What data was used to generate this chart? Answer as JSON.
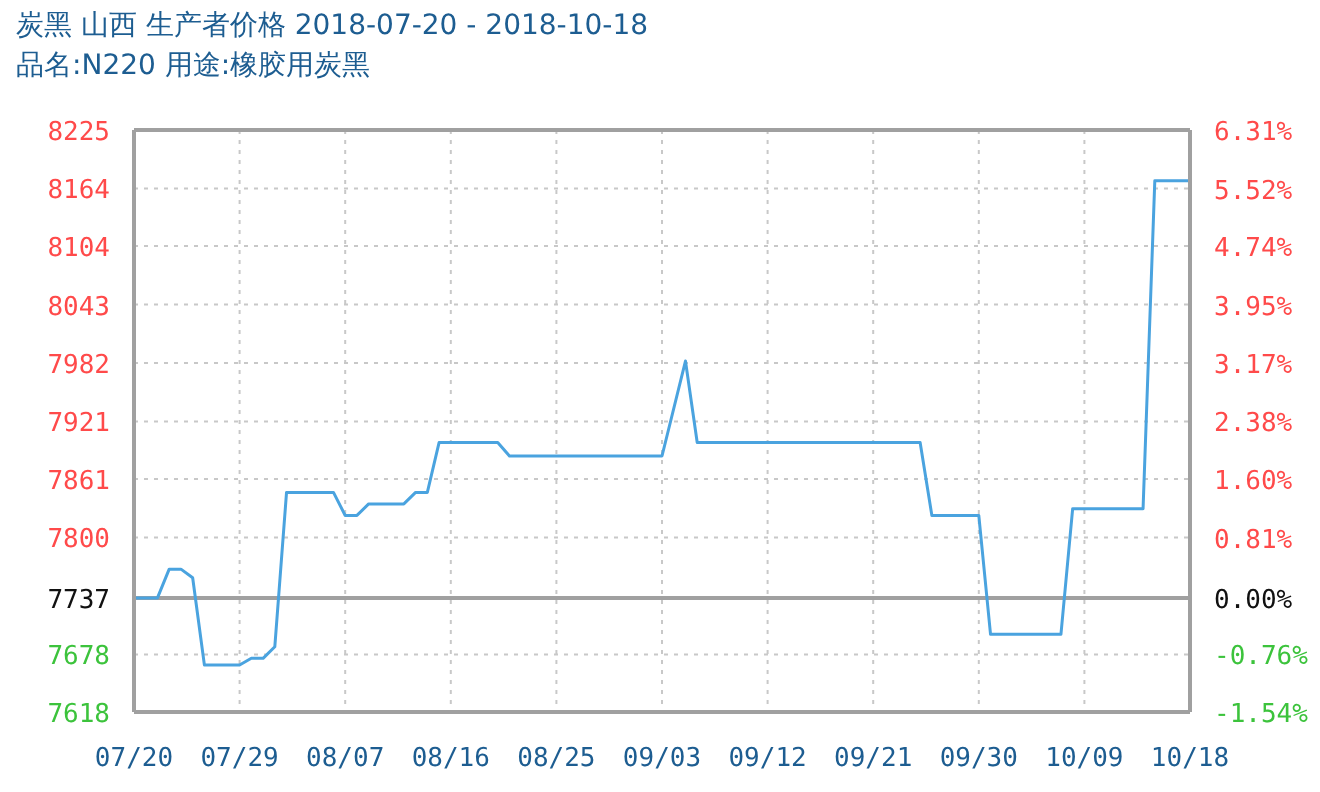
{
  "chart_data": {
    "type": "line",
    "title": "炭黑 山西 生产者价格 2018-07-20 - 2018-10-18",
    "subtitle": "品名:N220 用途:橡胶用炭黑",
    "x": [
      "2018-07-20",
      "2018-07-22",
      "2018-07-23",
      "2018-07-24",
      "2018-07-25",
      "2018-07-26",
      "2018-07-29",
      "2018-07-30",
      "2018-07-31",
      "2018-08-01",
      "2018-08-02",
      "2018-08-06",
      "2018-08-07",
      "2018-08-08",
      "2018-08-09",
      "2018-08-12",
      "2018-08-13",
      "2018-08-14",
      "2018-08-15",
      "2018-08-20",
      "2018-08-21",
      "2018-09-03",
      "2018-09-05",
      "2018-09-06",
      "2018-09-25",
      "2018-09-26",
      "2018-09-30",
      "2018-10-01",
      "2018-10-07",
      "2018-10-08",
      "2018-10-14",
      "2018-10-15",
      "2018-10-18"
    ],
    "series": [
      {
        "color": "#4aa3df",
        "values": [
          7737,
          7737,
          7767,
          7767,
          7758,
          7667,
          7667,
          7674,
          7674,
          7686,
          7847,
          7847,
          7823,
          7823,
          7835,
          7835,
          7847,
          7847,
          7899,
          7899,
          7885,
          7885,
          7984,
          7899,
          7899,
          7823,
          7823,
          7699,
          7699,
          7830,
          7830,
          8172,
          8172
        ]
      }
    ],
    "xlim": [
      "2018-07-20",
      "2018-10-18"
    ],
    "xticks": [
      {
        "value": "2018-07-20",
        "label": "07/20"
      },
      {
        "value": "2018-07-29",
        "label": "07/29"
      },
      {
        "value": "2018-08-07",
        "label": "08/07"
      },
      {
        "value": "2018-08-16",
        "label": "08/16"
      },
      {
        "value": "2018-08-25",
        "label": "08/25"
      },
      {
        "value": "2018-09-03",
        "label": "09/03"
      },
      {
        "value": "2018-09-12",
        "label": "09/12"
      },
      {
        "value": "2018-09-21",
        "label": "09/21"
      },
      {
        "value": "2018-09-30",
        "label": "09/30"
      },
      {
        "value": "2018-10-09",
        "label": "10/09"
      },
      {
        "value": "2018-10-18",
        "label": "10/18"
      }
    ],
    "ylim": [
      7618,
      8225
    ],
    "yticks": [
      7618,
      7678,
      7737,
      7800,
      7861,
      7921,
      7982,
      8043,
      8104,
      8164,
      8225
    ],
    "y2lim": [
      -1.54,
      6.31
    ],
    "y2ticks": [
      {
        "value": -1.54,
        "label": "-1.54%"
      },
      {
        "value": -0.76,
        "label": "-0.76%"
      },
      {
        "value": 0,
        "label": "0.00%"
      },
      {
        "value": 0.81,
        "label": "0.81%"
      },
      {
        "value": 1.6,
        "label": "1.60%"
      },
      {
        "value": 2.38,
        "label": "2.38%"
      },
      {
        "value": 3.17,
        "label": "3.17%"
      },
      {
        "value": 3.95,
        "label": "3.95%"
      },
      {
        "value": 4.74,
        "label": "4.74%"
      },
      {
        "value": 5.52,
        "label": "5.52%"
      },
      {
        "value": 6.31,
        "label": "6.31%"
      }
    ],
    "ref_lines": [
      {
        "axis": "y",
        "value": 7737,
        "color": "#a0a0a0"
      }
    ],
    "grid": true,
    "legend": false,
    "marker": "none",
    "line_style": "solid"
  }
}
